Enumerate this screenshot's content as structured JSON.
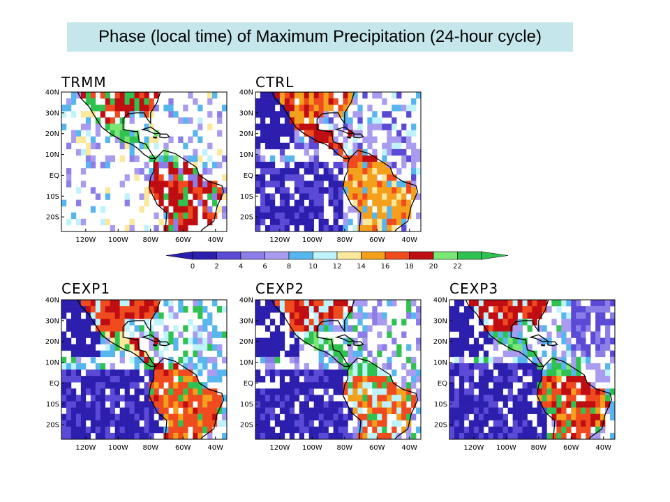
{
  "title": "Phase (local time) of Maximum Precipitation (24-hour cycle)",
  "colors": {
    "title_bg": "#c5e6ea",
    "colorbar": [
      "#2d1fae",
      "#5a4ad6",
      "#8c7ee8",
      "#a99cf0",
      "#57b6ee",
      "#bff3fb",
      "#fbe89c",
      "#f4a01c",
      "#ef4b1e",
      "#c00d11",
      "#7ae775",
      "#30c251"
    ],
    "land_outline": "#000000"
  },
  "chart_data": {
    "type": "heatmap",
    "value_meaning": "local hour of maximum precipitation",
    "colorbar": {
      "levels": [
        "0",
        "2",
        "4",
        "6",
        "8",
        "10",
        "12",
        "14",
        "16",
        "18",
        "20",
        "22"
      ]
    },
    "x_ticks": [
      "120W",
      "100W",
      "80W",
      "60W",
      "40W"
    ],
    "y_ticks": [
      "40N",
      "30N",
      "20N",
      "10N",
      "EQ",
      "10S",
      "20S"
    ],
    "panels": [
      {
        "name": "TRMM"
      },
      {
        "name": "CTRL"
      },
      {
        "name": "CEXP1"
      },
      {
        "name": "CEXP2"
      },
      {
        "name": "CEXP3"
      }
    ]
  }
}
